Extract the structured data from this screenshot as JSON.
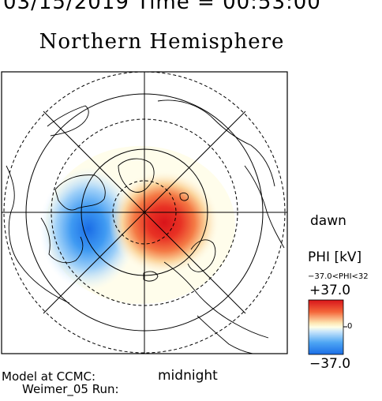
{
  "header": {
    "datetime_text": "03/15/2019 Time = 00:53:00"
  },
  "title": "Northern Hemisphere",
  "orientation": {
    "dawn": "dawn",
    "midnight": "midnight"
  },
  "colorbar": {
    "label": "PHI [kV]",
    "range_text": "−37.0<PHI<32",
    "max_label": "+37.0",
    "zero_label": "0",
    "min_label": "−37.0",
    "colors": {
      "high": "#e8201c",
      "mid": "#ffffe6",
      "low": "#1a73e8"
    }
  },
  "footer": {
    "model_line": "Model at CCMC:",
    "run_line": "Weimer_05 Run:"
  },
  "colors": {
    "positive_cell": "#e8201c",
    "negative_cell": "#1a73e8",
    "grid": "#000000"
  }
}
